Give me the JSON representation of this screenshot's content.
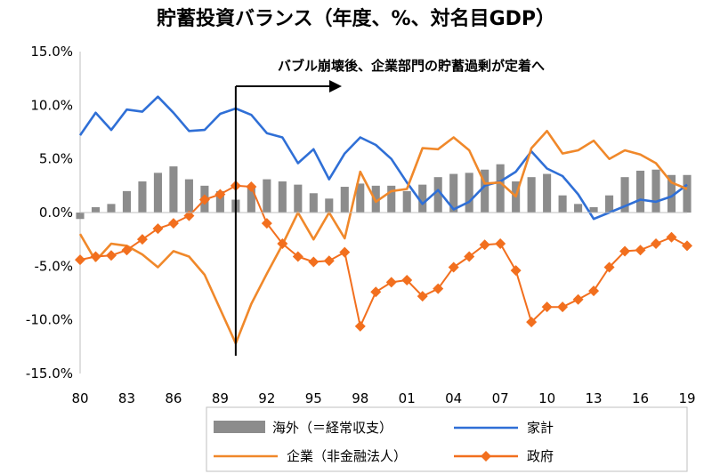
{
  "chart_data": {
    "type": "bar+line",
    "title": "貯蓄投資バランス（年度、%、対名目GDP）",
    "annotation": "バブル崩壊後、企業部門の貯蓄過剰が定着へ",
    "ylim": [
      -15,
      15
    ],
    "yticks": [
      "15.0%",
      "10.0%",
      "5.0%",
      "0.0%",
      "-5.0%",
      "-10.0%",
      "-15.0%"
    ],
    "ytick_values": [
      15,
      10,
      5,
      0,
      -5,
      -10,
      -15
    ],
    "xticks": [
      "80",
      "83",
      "86",
      "89",
      "92",
      "95",
      "98",
      "01",
      "04",
      "07",
      "10",
      "13",
      "16",
      "19"
    ],
    "x": [
      1980,
      1981,
      1982,
      1983,
      1984,
      1985,
      1986,
      1987,
      1988,
      1989,
      1990,
      1991,
      1992,
      1993,
      1994,
      1995,
      1996,
      1997,
      1998,
      1999,
      2000,
      2001,
      2002,
      2003,
      2004,
      2005,
      2006,
      2007,
      2008,
      2009,
      2010,
      2011,
      2012,
      2013,
      2014,
      2015,
      2016,
      2017,
      2018,
      2019
    ],
    "marker_year": 1990,
    "series": [
      {
        "name": "海外（＝経常収支）",
        "kind": "bar",
        "color": "#8c8c8c",
        "values": [
          -0.6,
          0.5,
          0.8,
          2.0,
          2.9,
          3.7,
          4.3,
          3.1,
          2.5,
          2.0,
          1.2,
          2.3,
          3.1,
          2.9,
          2.6,
          1.8,
          1.3,
          2.4,
          2.7,
          2.5,
          2.5,
          2.0,
          2.6,
          3.3,
          3.6,
          3.7,
          4.0,
          4.5,
          2.9,
          3.3,
          3.6,
          1.6,
          0.8,
          0.5,
          1.6,
          3.3,
          3.9,
          4.0,
          3.5,
          3.5
        ]
      },
      {
        "name": "家計",
        "kind": "line",
        "color": "#2f6fd6",
        "values": [
          7.2,
          9.3,
          7.7,
          9.6,
          9.4,
          10.8,
          9.3,
          7.6,
          7.7,
          9.2,
          9.7,
          9.1,
          7.4,
          7.0,
          4.6,
          5.9,
          3.1,
          5.5,
          7.0,
          6.3,
          5.0,
          2.8,
          0.8,
          2.1,
          0.3,
          1.0,
          2.5,
          2.9,
          3.8,
          5.7,
          4.1,
          3.4,
          1.7,
          -0.6,
          0.0,
          0.6,
          1.2,
          1.0,
          1.5,
          2.6
        ]
      },
      {
        "name": "企業（非金融法人）",
        "kind": "line",
        "color": "#f0882a",
        "values": [
          -2.0,
          -4.5,
          -2.9,
          -3.1,
          -3.9,
          -5.1,
          -3.6,
          -4.1,
          -5.8,
          -9.0,
          -12.2,
          -8.5,
          -5.7,
          -3.0,
          0.0,
          -2.5,
          0.0,
          -2.4,
          3.8,
          1.0,
          2.0,
          2.2,
          6.0,
          5.9,
          7.0,
          5.8,
          2.7,
          2.8,
          1.5,
          6.0,
          7.6,
          5.5,
          5.8,
          6.7,
          5.0,
          5.8,
          5.4,
          4.6,
          2.8,
          2.2
        ]
      },
      {
        "name": "政府",
        "kind": "line-marker",
        "color": "#f26f1e",
        "values": [
          -4.4,
          -4.1,
          -4.0,
          -3.5,
          -2.5,
          -1.5,
          -1.0,
          -0.3,
          1.2,
          1.7,
          2.5,
          2.4,
          -1.0,
          -2.9,
          -4.1,
          -4.6,
          -4.5,
          -3.7,
          -10.6,
          -7.4,
          -6.5,
          -6.3,
          -7.8,
          -7.1,
          -5.1,
          -4.1,
          -3.0,
          -2.9,
          -5.4,
          -10.2,
          -8.8,
          -8.8,
          -8.1,
          -7.3,
          -5.1,
          -3.6,
          -3.5,
          -2.9,
          -2.3,
          -3.1
        ]
      }
    ]
  }
}
